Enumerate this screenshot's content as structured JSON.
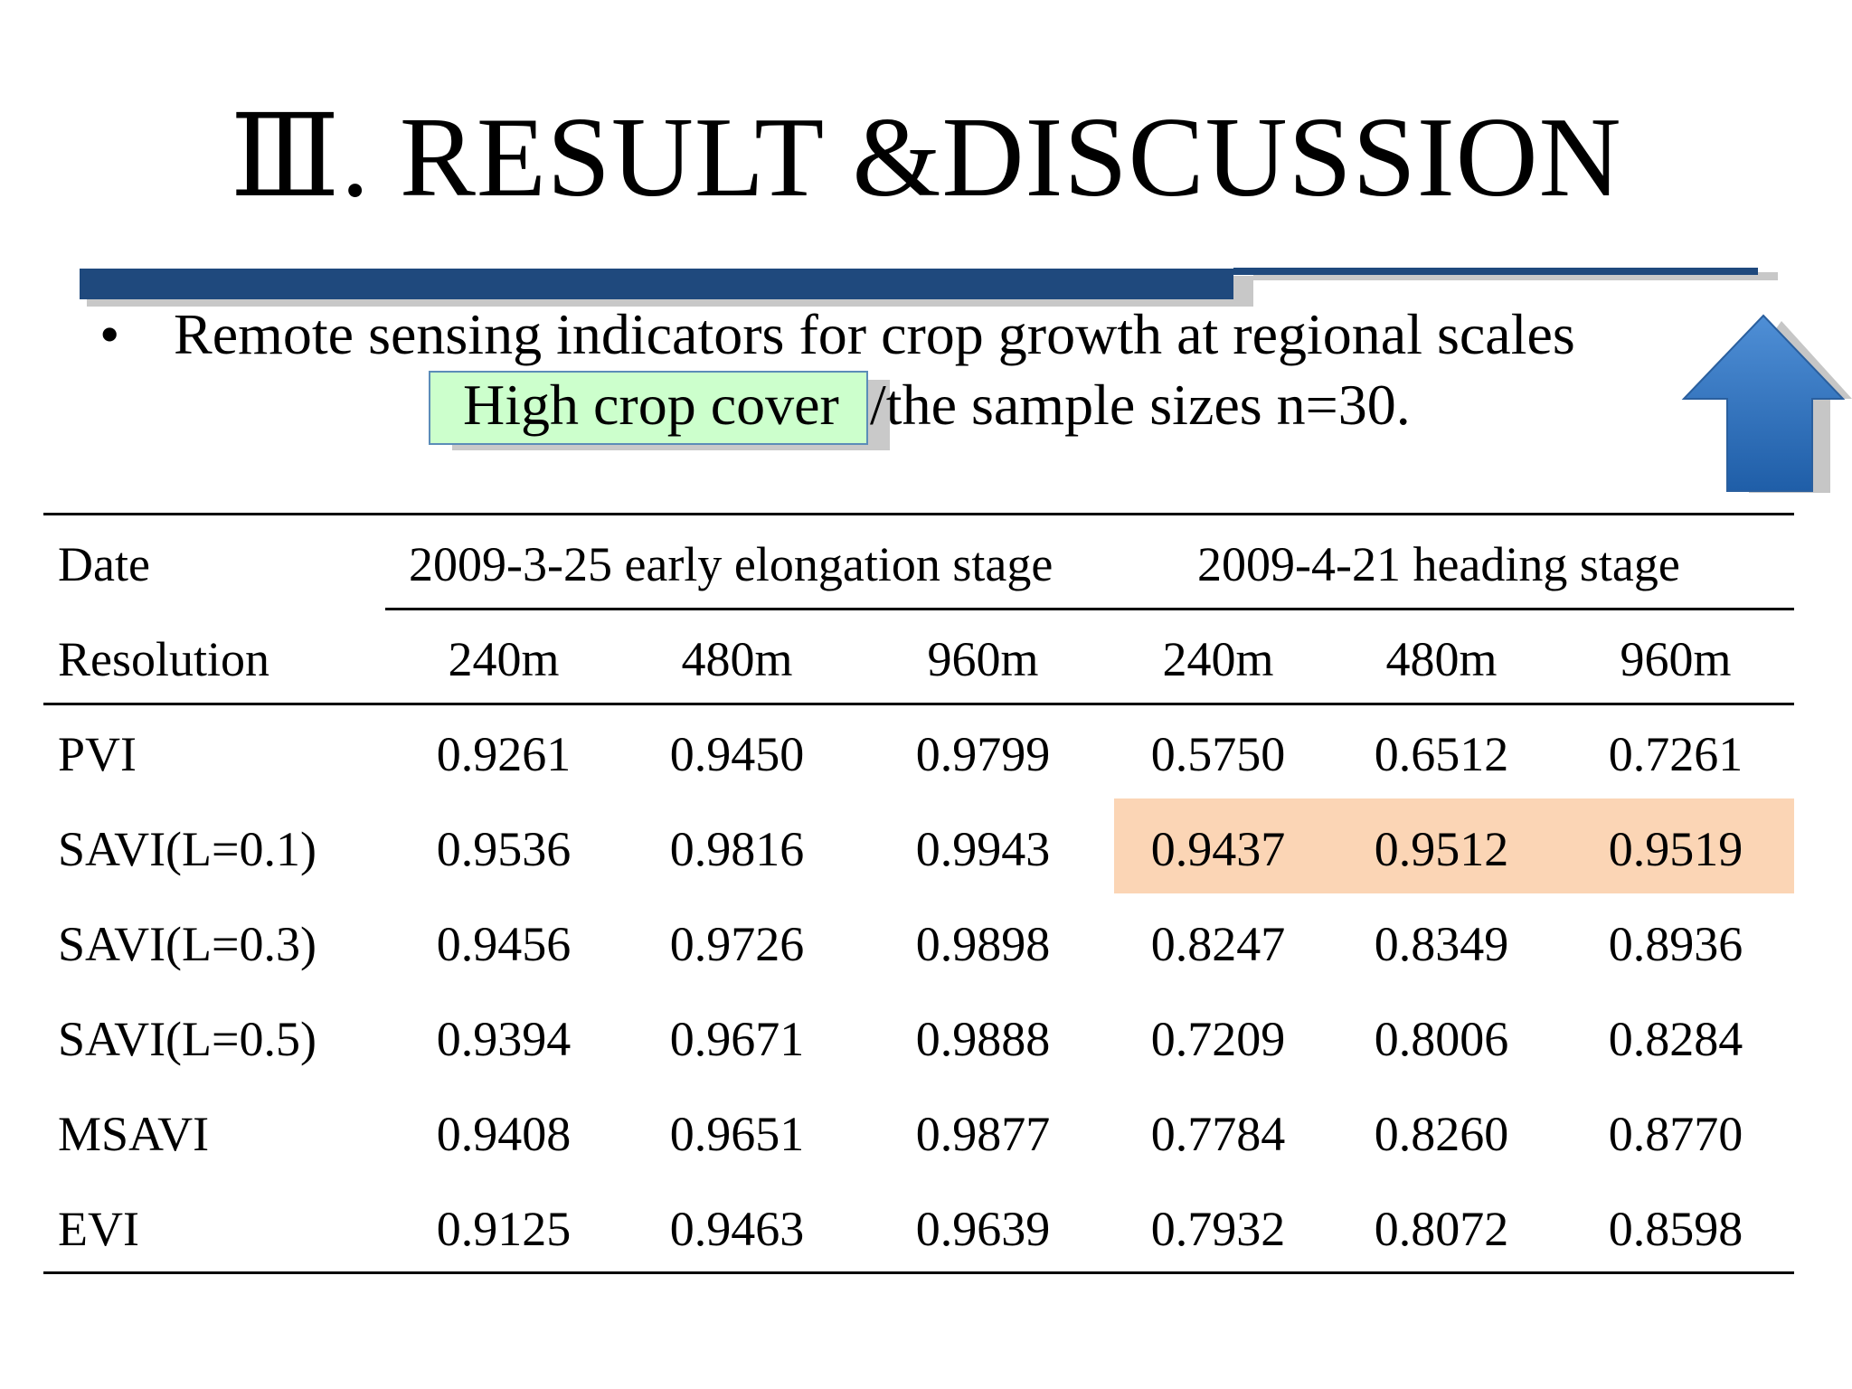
{
  "slide": {
    "title": "Ⅲ. RESULT &DISCUSSION",
    "bullet_symbol": "•",
    "bullet_text": "Remote sensing indicators for crop growth at regional scales",
    "highlight_text": "High crop cover",
    "sub_text_rest": "/the sample sizes n=30.",
    "nav_icon": "up-arrow-icon",
    "accent_color": "#1f497d",
    "highlight_box_color": "#ccffcc",
    "highlight_row_color": "#fbd5b5"
  },
  "table": {
    "date_label": "Date",
    "resolution_label": "Resolution",
    "groups": [
      "2009-3-25 early elongation stage",
      "2009-4-21 heading stage"
    ],
    "resolutions": [
      "240m",
      "480m",
      "960m",
      "240m",
      "480m",
      "960m"
    ],
    "rows": [
      {
        "name": "PVI",
        "values": [
          "0.9261",
          "0.9450",
          "0.9799",
          "0.5750",
          "0.6512",
          "0.7261"
        ]
      },
      {
        "name": "SAVI(L=0.1)",
        "values": [
          "0.9536",
          "0.9816",
          "0.9943",
          "0.9437",
          "0.9512",
          "0.9519"
        ]
      },
      {
        "name": "SAVI(L=0.3)",
        "values": [
          "0.9456",
          "0.9726",
          "0.9898",
          "0.8247",
          "0.8349",
          "0.8936"
        ]
      },
      {
        "name": "SAVI(L=0.5)",
        "values": [
          "0.9394",
          "0.9671",
          "0.9888",
          "0.7209",
          "0.8006",
          "0.8284"
        ]
      },
      {
        "name": "MSAVI",
        "values": [
          "0.9408",
          "0.9651",
          "0.9877",
          "0.7784",
          "0.8260",
          "0.8770"
        ]
      },
      {
        "name": "EVI",
        "values": [
          "0.9125",
          "0.9463",
          "0.9639",
          "0.7932",
          "0.8072",
          "0.8598"
        ]
      }
    ]
  }
}
